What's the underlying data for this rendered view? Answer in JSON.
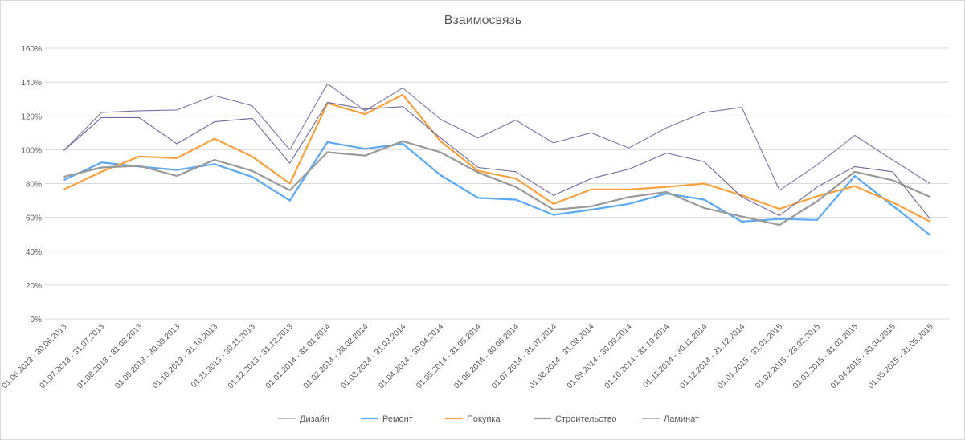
{
  "chart_data": {
    "type": "line",
    "title": "Взаимосвязь",
    "xlabel": "",
    "ylabel": "",
    "ylim": [
      0,
      160
    ],
    "yticks": [
      "0%",
      "20%",
      "40%",
      "60%",
      "80%",
      "100%",
      "120%",
      "140%",
      "160%"
    ],
    "grid": true,
    "legend_position": "bottom",
    "categories": [
      "01.06.2013 - 30.06.2013",
      "01.07.2013 - 31.07.2013",
      "01.08.2013 - 31.08.2013",
      "01.09.2013 - 30.09.2013",
      "01.10.2013 - 31.10.2013",
      "01.11.2013 - 30.11.2013",
      "01.12.2013 - 31.12.2013",
      "01.01.2014 - 31.01.2014",
      "01.02.2014 - 28.02.2014",
      "01.03.2014 - 31.03.2014",
      "01.04.2014 - 30.04.2014",
      "01.05.2014 - 31.05.2014",
      "01.06.2014 - 30.06.2014",
      "01.07.2014 - 31.07.2014",
      "01.08.2014 - 31.08.2014",
      "01.09.2014 - 30.09.2014",
      "01.10.2014 - 31.10.2014",
      "01.11.2014 - 30.11.2014",
      "01.12.2014 - 31.12.2014",
      "01.01.2015 - 31.01.2015",
      "01.02.2015 - 28.02.2015",
      "01.03.2015 - 31.03.2015",
      "01.04.2015 - 30.04.2015",
      "01.05.2015 - 31.05.2015"
    ],
    "series": [
      {
        "name": "Дизайн",
        "color": "#7b75a6",
        "width": 1,
        "values": [
          99.5,
          122,
          123,
          123.5,
          132,
          126,
          100,
          139,
          123,
          136.5,
          118,
          107,
          117.5,
          104,
          110,
          101,
          113,
          122,
          125,
          76,
          91,
          108.5,
          94,
          80
        ]
      },
      {
        "name": "Ремонт",
        "color": "#5ba8f5",
        "width": 2,
        "values": [
          82,
          92.5,
          90,
          88,
          91.5,
          84,
          70,
          104.5,
          100.5,
          103.5,
          85,
          71.5,
          70.5,
          61.5,
          64.5,
          68,
          74,
          70.5,
          57.5,
          59,
          58.5,
          84.5,
          67,
          49.5
        ]
      },
      {
        "name": "Покупка",
        "color": "#f9a13f",
        "width": 2,
        "values": [
          76.5,
          87,
          96,
          95,
          106.5,
          96,
          80,
          127.5,
          121,
          132.5,
          105,
          87.5,
          83,
          68,
          76.5,
          76.5,
          78,
          80,
          73,
          65,
          72.5,
          78.5,
          69,
          57.5
        ]
      },
      {
        "name": "Строительство",
        "color": "#999999",
        "width": 2,
        "values": [
          84,
          89.5,
          90.5,
          84.5,
          94,
          87.5,
          76,
          98.5,
          96.5,
          105,
          98.5,
          86.5,
          78,
          64.5,
          66.5,
          72,
          75,
          65.5,
          60.5,
          55.5,
          69.5,
          87,
          82,
          72
        ]
      },
      {
        "name": "Ламинат",
        "color": "#6d68a0",
        "width": 1,
        "values": [
          99.5,
          119,
          119,
          103.5,
          116.5,
          118.5,
          92,
          128,
          124,
          125.5,
          107,
          89.5,
          87,
          73,
          83,
          88.5,
          98,
          93,
          72,
          61,
          78,
          90,
          87,
          59
        ]
      }
    ]
  }
}
